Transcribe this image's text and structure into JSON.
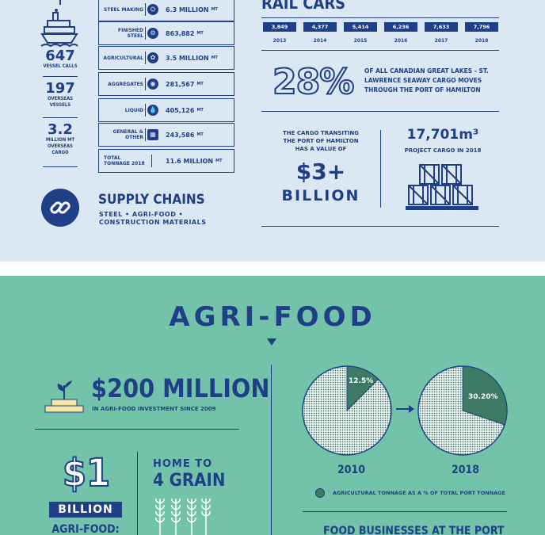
{
  "colors": {
    "navy": "#1f3f86",
    "top_bg": "#dbe8f3",
    "bottom_bg": "#72c3a9",
    "pie_dark": "#3c7a64"
  },
  "port_stats": [
    {
      "value": "647",
      "label": "VESSEL CALLS"
    },
    {
      "value": "197",
      "label": "OVERSEAS VESSELS"
    },
    {
      "value": "3.2",
      "label": "MILLION MT OVERSEAS CARGO"
    }
  ],
  "cargo": [
    {
      "name": "STEEL MAKING",
      "icon": "steel-icon",
      "value": "6.3 MILLION",
      "unit": "MT"
    },
    {
      "name": "FINISHED STEEL",
      "icon": "finished-steel-icon",
      "value": "863,882",
      "unit": "MT"
    },
    {
      "name": "AGRICULTURAL",
      "icon": "agricultural-icon",
      "value": "3.5 MILLION",
      "unit": "MT"
    },
    {
      "name": "AGGREGATES",
      "icon": "aggregates-icon",
      "value": "281,567",
      "unit": "MT"
    },
    {
      "name": "LIQUID",
      "icon": "liquid-icon",
      "value": "405,126",
      "unit": "MT"
    },
    {
      "name": "GENERAL & OTHER",
      "icon": "general-icon",
      "value": "243,586",
      "unit": "MT"
    },
    {
      "name": "TOTAL TONNAGE 2018",
      "icon": "",
      "value": "11.6 MILLION",
      "unit": "MT"
    }
  ],
  "supply_chains": {
    "title": "SUPPLY CHAINS",
    "text": "STEEL • AGRI-FOOD • CONSTRUCTION MATERIALS"
  },
  "rail": {
    "title": "RAIL CARS",
    "items": [
      {
        "year": "2013",
        "value": "3,849"
      },
      {
        "year": "2014",
        "value": "4,377"
      },
      {
        "year": "2015",
        "value": "5,414"
      },
      {
        "year": "2016",
        "value": "6,236"
      },
      {
        "year": "2017",
        "value": "7,633"
      },
      {
        "year": "2018",
        "value": "7,796"
      }
    ]
  },
  "seaway": {
    "pct": "28%",
    "text": "OF ALL CANADIAN GREAT LAKES - ST. LAWRENCE SEAWAY CARGO MOVES THROUGH THE PORT OF HAMILTON"
  },
  "cargo_value": {
    "text": "THE CARGO TRANSITING THE PORT OF HAMILTON HAS A VALUE OF",
    "big": "$3+",
    "unit": "BILLION"
  },
  "project_cargo": {
    "value": "17,701m³",
    "label": "PROJECT CARGO IN 2018"
  },
  "agri": {
    "title": "AGRI-FOOD",
    "investment": "$200 MILLION",
    "investment_sub": "IN AGRI-FOOD INVESTMENT SINCE 2009",
    "one": "$1",
    "billion": "BILLION",
    "agri_food_label": "AGRI-FOOD:",
    "home_to": "HOME TO",
    "grain": "4 GRAIN",
    "food_businesses": "FOOD BUSINESSES AT THE PORT"
  },
  "chart_data": {
    "type": "pie",
    "title": "",
    "legend": "AGRICULTURAL TONNAGE AS A % OF TOTAL PORT TONNAGE",
    "series": [
      {
        "name": "2010",
        "value": 12.5,
        "label": "12.5%"
      },
      {
        "name": "2018",
        "value": 30.2,
        "label": "30.20%"
      }
    ]
  }
}
